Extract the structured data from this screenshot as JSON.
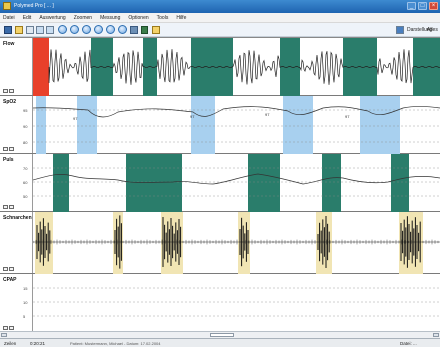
{
  "window": {
    "title": "Polymed Pro [ ... ]"
  },
  "menu": [
    "Datei",
    "Edit",
    "Auswertung",
    "Zoomen",
    "Messung",
    "Optionen",
    "Tools",
    "Hilfe"
  ],
  "toolbar": {
    "right_label": "Darstellung",
    "right_label2": "Alles"
  },
  "channels": [
    {
      "id": "flow",
      "label": "Flow",
      "ticks": []
    },
    {
      "id": "spo2",
      "label": "SpO2",
      "ticks": [
        "95",
        "90",
        "80"
      ]
    },
    {
      "id": "puls",
      "label": "Puls",
      "ticks": [
        "70",
        "60",
        "50"
      ]
    },
    {
      "id": "schnarchen",
      "label": "Schnarchen",
      "ticks": []
    },
    {
      "id": "cpap",
      "label": "CPAP",
      "ticks": [
        "15",
        "10",
        "5"
      ]
    }
  ],
  "spo2_markers": [
    "97",
    "97",
    "97",
    "97"
  ],
  "colors": {
    "apnea": "#2a7d6b",
    "desat": "#a8d0ef",
    "marker": "#e8402a",
    "snore": "#f1e5b4"
  },
  "status": {
    "left1": "Zeilen",
    "left2": "0:20:21",
    "bottom": "Patient: Mustermann, Michael - Datum: 17.02.2004",
    "right": "Datei: ..."
  }
}
